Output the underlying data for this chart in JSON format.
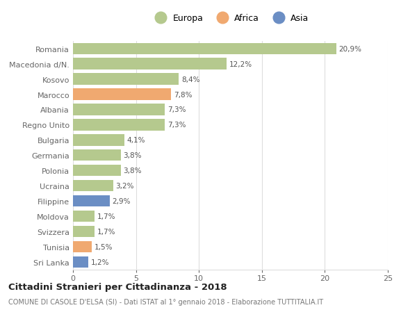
{
  "countries": [
    "Romania",
    "Macedonia d/N.",
    "Kosovo",
    "Marocco",
    "Albania",
    "Regno Unito",
    "Bulgaria",
    "Germania",
    "Polonia",
    "Ucraina",
    "Filippine",
    "Moldova",
    "Svizzera",
    "Tunisia",
    "Sri Lanka"
  ],
  "values": [
    20.9,
    12.2,
    8.4,
    7.8,
    7.3,
    7.3,
    4.1,
    3.8,
    3.8,
    3.2,
    2.9,
    1.7,
    1.7,
    1.5,
    1.2
  ],
  "labels": [
    "20,9%",
    "12,2%",
    "8,4%",
    "7,8%",
    "7,3%",
    "7,3%",
    "4,1%",
    "3,8%",
    "3,8%",
    "3,2%",
    "2,9%",
    "1,7%",
    "1,7%",
    "1,5%",
    "1,2%"
  ],
  "continent": [
    "Europa",
    "Europa",
    "Europa",
    "Africa",
    "Europa",
    "Europa",
    "Europa",
    "Europa",
    "Europa",
    "Europa",
    "Asia",
    "Europa",
    "Europa",
    "Africa",
    "Asia"
  ],
  "colors": {
    "Europa": "#b5c98e",
    "Africa": "#f0a970",
    "Asia": "#6b8ec4"
  },
  "title": "Cittadini Stranieri per Cittadinanza - 2018",
  "subtitle": "COMUNE DI CASOLE D'ELSA (SI) - Dati ISTAT al 1° gennaio 2018 - Elaborazione TUTTITALIA.IT",
  "xlim": [
    0,
    25
  ],
  "xticks": [
    0,
    5,
    10,
    15,
    20,
    25
  ],
  "background_color": "#ffffff",
  "grid_color": "#dddddd",
  "bar_height": 0.75,
  "text_color": "#666666",
  "label_color": "#555555",
  "title_color": "#222222",
  "subtitle_color": "#777777",
  "legend_marker_size": 12
}
